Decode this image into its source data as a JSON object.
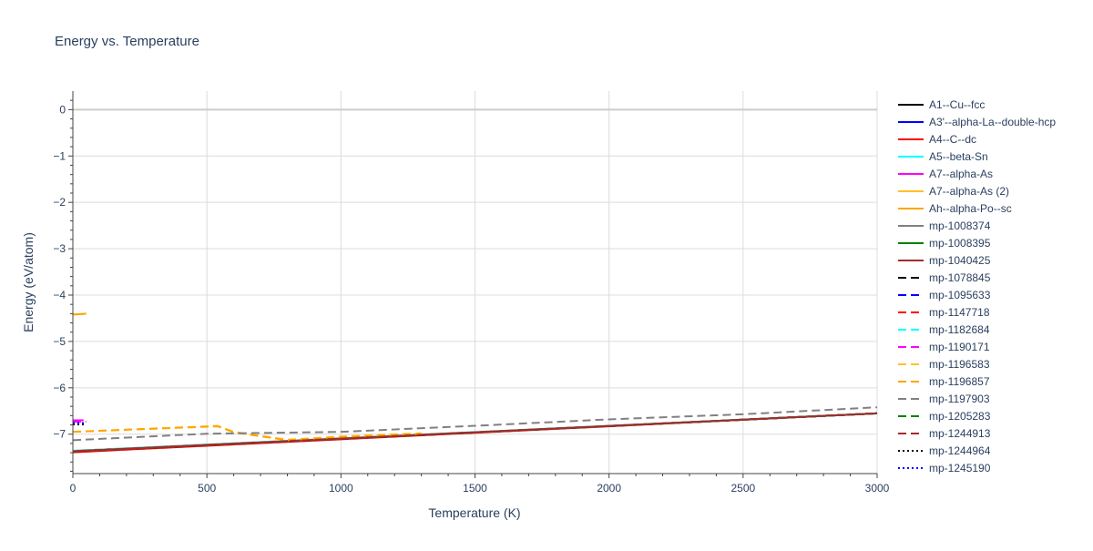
{
  "chart_data": {
    "type": "line",
    "title": "Energy vs. Temperature",
    "xlabel": "Temperature (K)",
    "ylabel": "Energy (eV/atom)",
    "xlim": [
      0,
      3000
    ],
    "ylim": [
      -7.85,
      0.4
    ],
    "x_ticks": [
      0,
      500,
      1000,
      1500,
      2000,
      2500,
      3000
    ],
    "x_tick_labels": [
      "0",
      "500",
      "1000",
      "1500",
      "2000",
      "2500",
      "3000"
    ],
    "y_ticks": [
      0,
      -1,
      -2,
      -3,
      -4,
      -5,
      -6,
      -7
    ],
    "y_tick_labels": [
      "0",
      "−1",
      "−2",
      "−3",
      "−4",
      "−5",
      "−6",
      "−7"
    ],
    "grid": true,
    "legend_position": "right",
    "series": [
      {
        "name": "A1--Cu--fcc",
        "color": "#000000",
        "dash": "solid",
        "x": [
          0,
          3000
        ],
        "y": [
          -7.37,
          -6.55
        ]
      },
      {
        "name": "A3'--alpha-La--double-hcp",
        "color": "#0000ff",
        "dash": "solid",
        "x": [
          0,
          3000
        ],
        "y": [
          -7.37,
          -6.55
        ]
      },
      {
        "name": "A4--C--dc",
        "color": "#ff0000",
        "dash": "solid",
        "x": [
          0,
          3000
        ],
        "y": [
          -7.39,
          -6.55
        ]
      },
      {
        "name": "A5--beta-Sn",
        "color": "#00ffff",
        "dash": "solid",
        "x": [
          0,
          3000
        ],
        "y": [
          -7.37,
          -6.55
        ]
      },
      {
        "name": "A7--alpha-As",
        "color": "#ff00ff",
        "dash": "solid",
        "x": [
          0,
          40
        ],
        "y": [
          -6.7,
          -6.7
        ]
      },
      {
        "name": "A7--alpha-As (2)",
        "color": "#ffc125",
        "dash": "solid",
        "x": [
          0,
          40
        ],
        "y": [
          -4.42,
          -4.41
        ]
      },
      {
        "name": "Ah--alpha-Po--sc",
        "color": "#ffa500",
        "dash": "solid",
        "x": [
          0,
          50
        ],
        "y": [
          -4.42,
          -4.4
        ]
      },
      {
        "name": "mp-1008374",
        "color": "#808080",
        "dash": "solid",
        "x": [
          0,
          3000
        ],
        "y": [
          -7.36,
          -6.55
        ]
      },
      {
        "name": "mp-1008395",
        "color": "#008000",
        "dash": "solid",
        "x": [
          0,
          3000
        ],
        "y": [
          -7.37,
          -6.55
        ]
      },
      {
        "name": "mp-1040425",
        "color": "#a52a2a",
        "dash": "solid",
        "x": [
          0,
          3000
        ],
        "y": [
          -7.37,
          -6.55
        ]
      },
      {
        "name": "mp-1078845",
        "color": "#000000",
        "dash": "dash",
        "x": [
          0,
          3000
        ],
        "y": [
          -7.38,
          -6.55
        ]
      },
      {
        "name": "mp-1095633",
        "color": "#0000ff",
        "dash": "dash",
        "x": [
          0,
          3000
        ],
        "y": [
          -7.37,
          -6.55
        ]
      },
      {
        "name": "mp-1147718",
        "color": "#ff0000",
        "dash": "dash",
        "x": [
          0,
          3000
        ],
        "y": [
          -7.38,
          -6.55
        ]
      },
      {
        "name": "mp-1182684",
        "color": "#00ffff",
        "dash": "dash",
        "x": [
          0,
          3000
        ],
        "y": [
          -7.36,
          -6.55
        ]
      },
      {
        "name": "mp-1190171",
        "color": "#ff00ff",
        "dash": "dash",
        "x": [
          0,
          50
        ],
        "y": [
          -6.73,
          -6.73
        ]
      },
      {
        "name": "mp-1196583",
        "color": "#ffc125",
        "dash": "dash",
        "x": [
          0,
          540,
          600,
          800,
          1000,
          1300
        ],
        "y": [
          -6.95,
          -6.82,
          -6.95,
          -7.12,
          -7.05,
          -6.98
        ]
      },
      {
        "name": "mp-1196857",
        "color": "#ffa500",
        "dash": "dash",
        "x": [
          0,
          540,
          600,
          800,
          1000,
          1300
        ],
        "y": [
          -6.95,
          -6.83,
          -6.96,
          -7.13,
          -7.06,
          -6.99
        ]
      },
      {
        "name": "mp-1197903",
        "color": "#808080",
        "dash": "dash",
        "x": [
          0,
          500,
          1000,
          1500,
          2000,
          2500,
          3000
        ],
        "y": [
          -7.13,
          -6.99,
          -6.95,
          -6.82,
          -6.68,
          -6.57,
          -6.42
        ]
      },
      {
        "name": "mp-1205283",
        "color": "#008000",
        "dash": "dash",
        "x": [
          0,
          3000
        ],
        "y": [
          -7.37,
          -6.55
        ]
      },
      {
        "name": "mp-1244913",
        "color": "#a52a2a",
        "dash": "dash",
        "x": [
          0,
          3000
        ],
        "y": [
          -7.37,
          -6.55
        ]
      },
      {
        "name": "mp-1244964",
        "color": "#000000",
        "dash": "dot",
        "x": [
          0,
          50
        ],
        "y": [
          -6.79,
          -6.79
        ]
      },
      {
        "name": "mp-1245190",
        "color": "#0000ff",
        "dash": "dot",
        "x": [
          0,
          50
        ],
        "y": [
          -6.76,
          -6.76
        ]
      }
    ]
  }
}
